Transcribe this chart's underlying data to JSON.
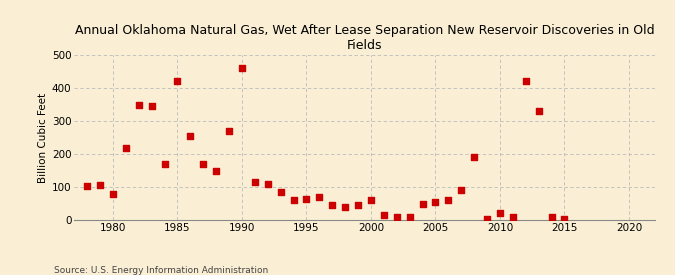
{
  "title": "Annual Oklahoma Natural Gas, Wet After Lease Separation New Reservoir Discoveries in Old\nFields",
  "ylabel": "Billion Cubic Feet",
  "source": "Source: U.S. Energy Information Administration",
  "years": [
    1978,
    1979,
    1980,
    1981,
    1982,
    1983,
    1984,
    1985,
    1986,
    1987,
    1988,
    1989,
    1990,
    1991,
    1992,
    1993,
    1994,
    1995,
    1996,
    1997,
    1998,
    1999,
    2000,
    2001,
    2002,
    2003,
    2004,
    2005,
    2006,
    2007,
    2008,
    2009,
    2010,
    2011,
    2012,
    2013,
    2014,
    2015
  ],
  "values": [
    103,
    105,
    80,
    218,
    350,
    345,
    170,
    420,
    255,
    170,
    150,
    270,
    460,
    115,
    110,
    85,
    60,
    65,
    70,
    45,
    40,
    45,
    60,
    15,
    10,
    10,
    50,
    55,
    60,
    90,
    190,
    2,
    20,
    10,
    420,
    330,
    10,
    3
  ],
  "marker_color": "#cc0000",
  "bg_color": "#faefd4",
  "grid_color": "#bbbbbb",
  "xlim": [
    1977,
    2022
  ],
  "ylim": [
    0,
    500
  ],
  "yticks": [
    0,
    100,
    200,
    300,
    400,
    500
  ],
  "xticks": [
    1980,
    1985,
    1990,
    1995,
    2000,
    2005,
    2010,
    2015,
    2020
  ],
  "title_fontsize": 9,
  "ylabel_fontsize": 7.5,
  "tick_fontsize": 7.5,
  "source_fontsize": 6.5,
  "marker_size": 16
}
